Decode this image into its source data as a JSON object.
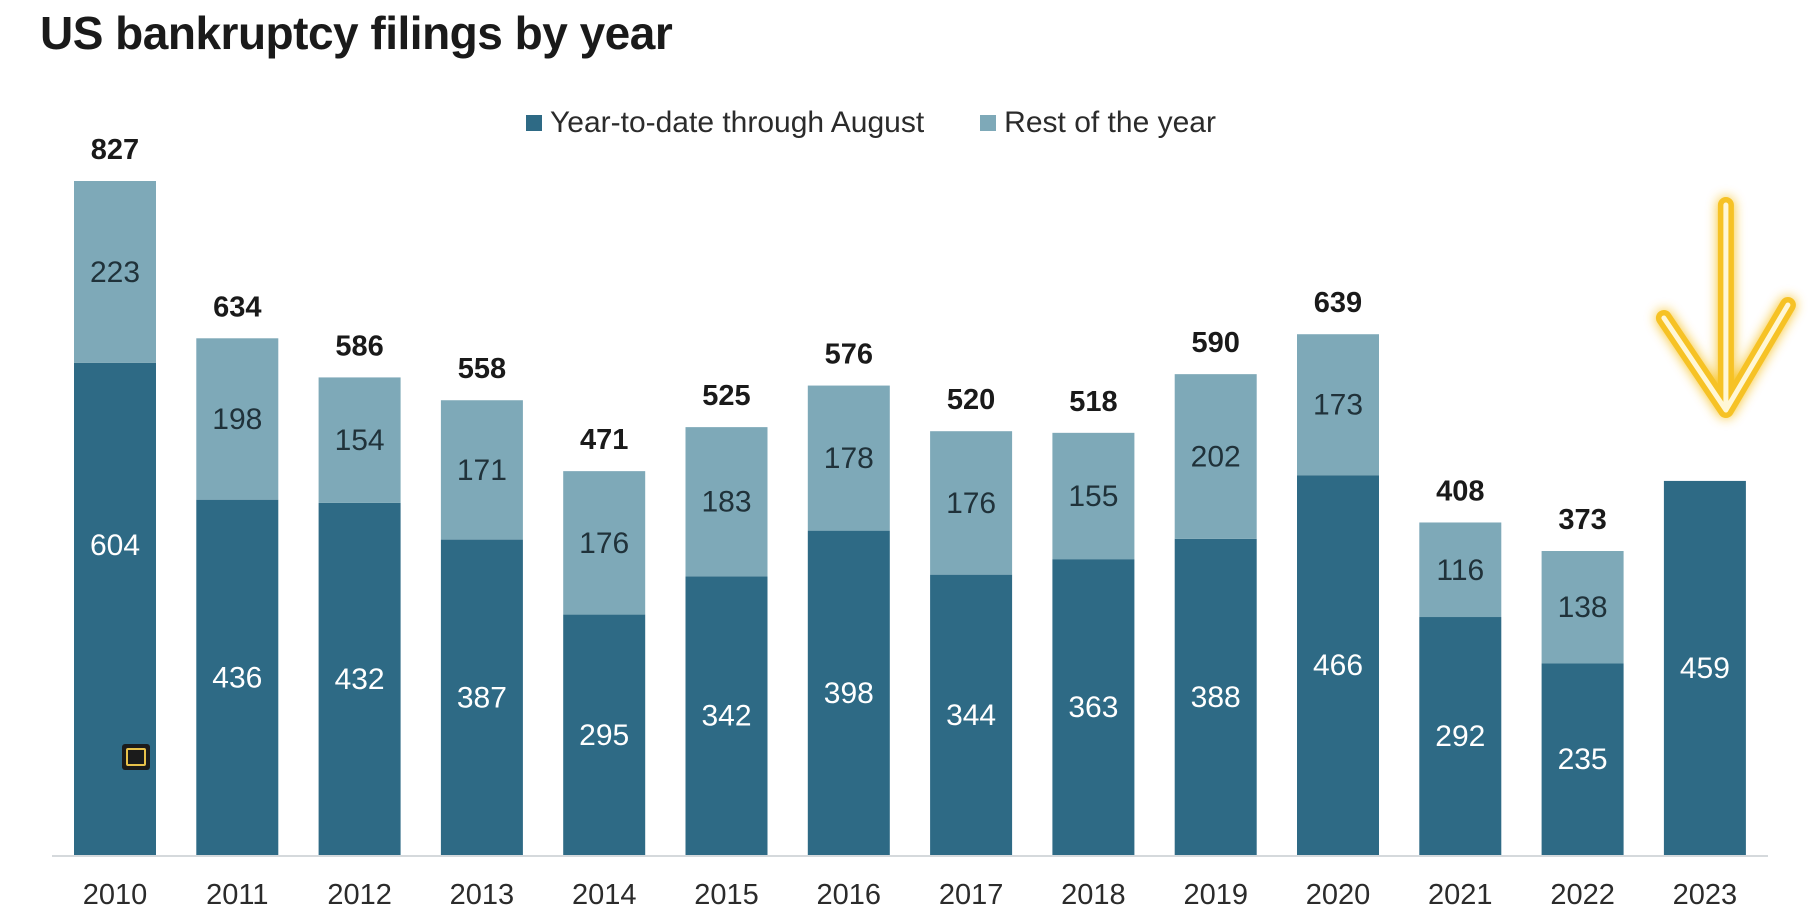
{
  "chart_data": {
    "type": "bar",
    "stacked": true,
    "title": "US bankruptcy filings by year",
    "categories": [
      "2010",
      "2011",
      "2012",
      "2013",
      "2014",
      "2015",
      "2016",
      "2017",
      "2018",
      "2019",
      "2020",
      "2021",
      "2022",
      "2023"
    ],
    "series": [
      {
        "name": "Year-to-date through August",
        "color": "#2e6a85",
        "values": [
          604,
          436,
          432,
          387,
          295,
          342,
          398,
          344,
          363,
          388,
          466,
          292,
          235,
          459
        ]
      },
      {
        "name": "Rest of the year",
        "color": "#7ea9b8",
        "values": [
          223,
          198,
          154,
          171,
          176,
          183,
          178,
          176,
          155,
          202,
          173,
          116,
          138,
          null
        ]
      }
    ],
    "totals": [
      827,
      634,
      586,
      558,
      471,
      525,
      576,
      520,
      518,
      590,
      639,
      408,
      373,
      null
    ],
    "ylim": [
      0,
      827
    ],
    "grid": false,
    "legend_position": "top-center",
    "highlight": {
      "category": "2023",
      "icon": "down-arrow-icon",
      "color": "#f5b800"
    }
  }
}
